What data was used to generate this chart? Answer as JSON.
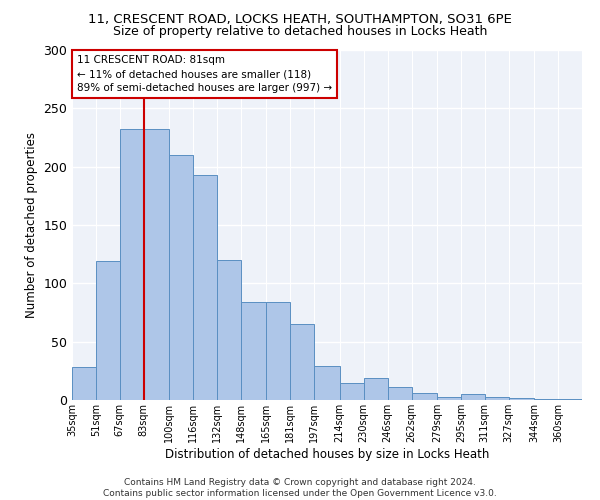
{
  "title1": "11, CRESCENT ROAD, LOCKS HEATH, SOUTHAMPTON, SO31 6PE",
  "title2": "Size of property relative to detached houses in Locks Heath",
  "xlabel": "Distribution of detached houses by size in Locks Heath",
  "ylabel": "Number of detached properties",
  "bar_labels": [
    "35sqm",
    "51sqm",
    "67sqm",
    "83sqm",
    "100sqm",
    "116sqm",
    "132sqm",
    "148sqm",
    "165sqm",
    "181sqm",
    "197sqm",
    "214sqm",
    "230sqm",
    "246sqm",
    "262sqm",
    "279sqm",
    "295sqm",
    "311sqm",
    "327sqm",
    "344sqm",
    "360sqm"
  ],
  "bar_values": [
    28,
    119,
    232,
    232,
    210,
    193,
    120,
    84,
    84,
    65,
    29,
    15,
    19,
    11,
    6,
    3,
    5,
    3,
    2,
    1,
    1
  ],
  "bar_color": "#aec6e8",
  "bar_edge_color": "#5a8fc2",
  "property_label": "11 CRESCENT ROAD: 81sqm",
  "annotation_line1": "← 11% of detached houses are smaller (118)",
  "annotation_line2": "89% of semi-detached houses are larger (997) →",
  "vline_color": "#cc0000",
  "bin_edges": [
    35,
    51,
    67,
    83,
    100,
    116,
    132,
    148,
    165,
    181,
    197,
    214,
    230,
    246,
    262,
    279,
    295,
    311,
    327,
    344,
    360,
    376
  ],
  "ylim": [
    0,
    300
  ],
  "yticks": [
    0,
    50,
    100,
    150,
    200,
    250,
    300
  ],
  "footer": "Contains HM Land Registry data © Crown copyright and database right 2024.\nContains public sector information licensed under the Open Government Licence v3.0.",
  "background_color": "#eef2f9"
}
